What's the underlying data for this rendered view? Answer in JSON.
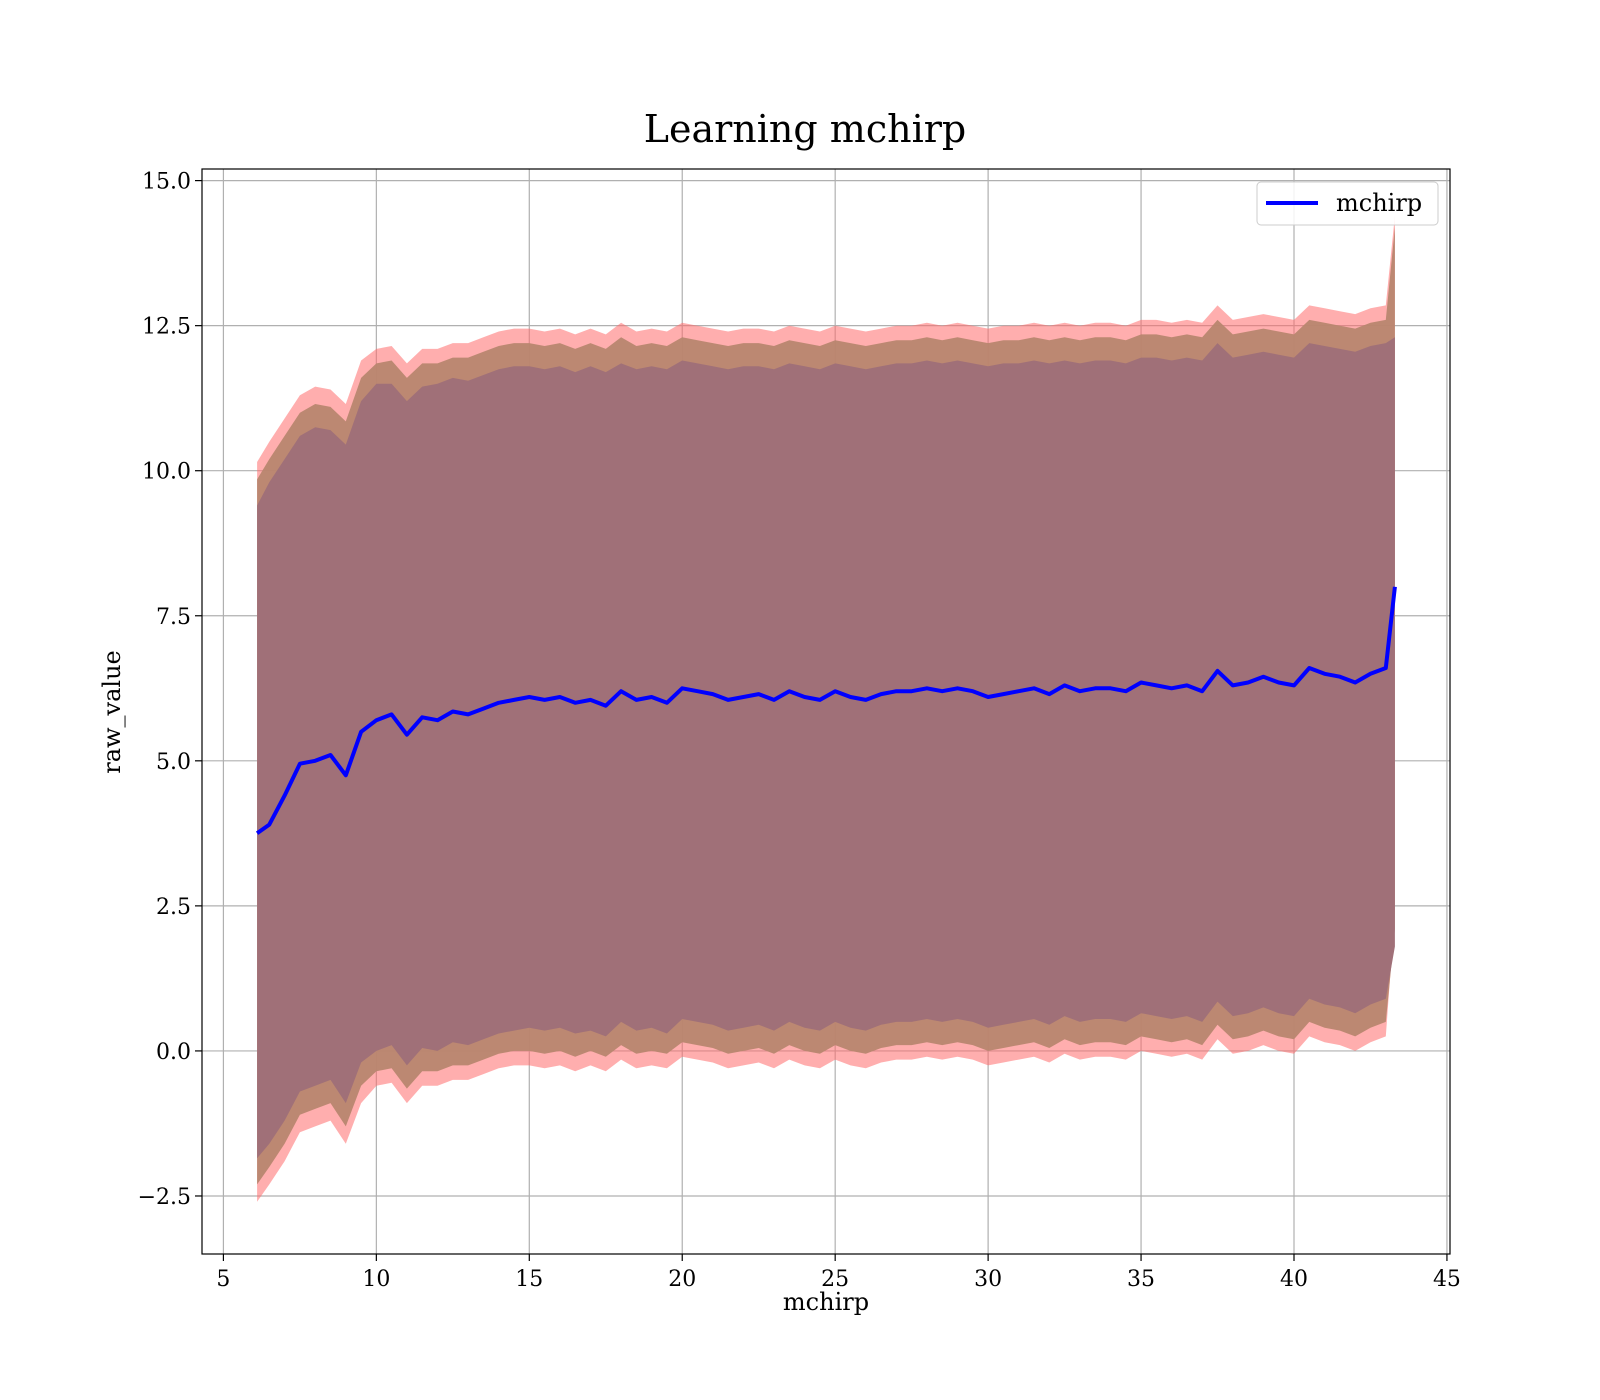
{
  "chart_data": {
    "type": "line",
    "title": "Learning mchirp",
    "xlabel": "mchirp",
    "ylabel": "raw_value",
    "xlim": [
      4.3,
      45.1
    ],
    "ylim": [
      -3.5,
      15.2
    ],
    "xticks": [
      5,
      10,
      15,
      20,
      25,
      30,
      35,
      40,
      45
    ],
    "xtick_labels": [
      "5",
      "10",
      "15",
      "20",
      "25",
      "30",
      "35",
      "40",
      "45"
    ],
    "yticks": [
      -2.5,
      0.0,
      2.5,
      5.0,
      7.5,
      10.0,
      12.5,
      15.0
    ],
    "ytick_labels": [
      "−2.5",
      "0.0",
      "2.5",
      "5.0",
      "7.5",
      "10.0",
      "12.5",
      "15.0"
    ],
    "grid": true,
    "legend": {
      "position": "top-right",
      "entries": [
        "mchirp"
      ]
    },
    "colors": {
      "line": "#0000ff",
      "band_outer": "#ff6b6b",
      "band_middle": "#b8866f",
      "band_inner": "#a07078",
      "grid": "#b0b0b0"
    },
    "x": [
      6.1,
      6.5,
      7.0,
      7.5,
      8.0,
      8.5,
      9.0,
      9.5,
      10.0,
      10.5,
      11.0,
      11.5,
      12.0,
      12.5,
      13.0,
      13.5,
      14.0,
      14.5,
      15.0,
      15.5,
      16.0,
      16.5,
      17.0,
      17.5,
      18.0,
      18.5,
      19.0,
      19.5,
      20.0,
      20.5,
      21.0,
      21.5,
      22.0,
      22.5,
      23.0,
      23.5,
      24.0,
      24.5,
      25.0,
      25.5,
      26.0,
      26.5,
      27.0,
      27.5,
      28.0,
      28.5,
      29.0,
      29.5,
      30.0,
      30.5,
      31.0,
      31.5,
      32.0,
      32.5,
      33.0,
      33.5,
      34.0,
      34.5,
      35.0,
      35.5,
      36.0,
      36.5,
      37.0,
      37.5,
      38.0,
      38.5,
      39.0,
      39.5,
      40.0,
      40.5,
      41.0,
      41.5,
      42.0,
      42.5,
      43.0,
      43.3
    ],
    "series": [
      {
        "name": "mchirp",
        "role": "mean",
        "values": [
          3.75,
          3.9,
          4.4,
          4.95,
          5.0,
          5.1,
          4.75,
          5.5,
          5.7,
          5.8,
          5.45,
          5.75,
          5.7,
          5.85,
          5.8,
          5.9,
          6.0,
          6.05,
          6.1,
          6.05,
          6.1,
          6.0,
          6.05,
          5.95,
          6.2,
          6.05,
          6.1,
          6.0,
          6.25,
          6.2,
          6.15,
          6.05,
          6.1,
          6.15,
          6.05,
          6.2,
          6.1,
          6.05,
          6.2,
          6.1,
          6.05,
          6.15,
          6.2,
          6.2,
          6.25,
          6.2,
          6.25,
          6.2,
          6.1,
          6.15,
          6.2,
          6.25,
          6.15,
          6.3,
          6.2,
          6.25,
          6.25,
          6.2,
          6.35,
          6.3,
          6.25,
          6.3,
          6.2,
          6.55,
          6.3,
          6.35,
          6.45,
          6.35,
          6.3,
          6.6,
          6.5,
          6.45,
          6.35,
          6.5,
          6.6,
          8.0
        ]
      },
      {
        "name": "",
        "role": "band_inner_upper",
        "values": [
          9.4,
          9.8,
          10.2,
          10.6,
          10.75,
          10.7,
          10.45,
          11.2,
          11.5,
          11.5,
          11.2,
          11.45,
          11.5,
          11.6,
          11.55,
          11.65,
          11.75,
          11.8,
          11.8,
          11.75,
          11.8,
          11.7,
          11.8,
          11.7,
          11.85,
          11.75,
          11.8,
          11.75,
          11.9,
          11.85,
          11.8,
          11.75,
          11.8,
          11.8,
          11.75,
          11.85,
          11.8,
          11.75,
          11.85,
          11.8,
          11.75,
          11.8,
          11.85,
          11.85,
          11.9,
          11.85,
          11.9,
          11.85,
          11.8,
          11.85,
          11.85,
          11.9,
          11.85,
          11.9,
          11.85,
          11.9,
          11.9,
          11.85,
          11.95,
          11.95,
          11.9,
          11.95,
          11.9,
          12.2,
          11.95,
          12.0,
          12.05,
          12.0,
          11.95,
          12.2,
          12.15,
          12.1,
          12.05,
          12.15,
          12.2,
          12.3
        ]
      },
      {
        "name": "",
        "role": "band_inner_lower",
        "values": [
          -1.85,
          -1.6,
          -1.2,
          -0.7,
          -0.6,
          -0.5,
          -0.9,
          -0.2,
          0.0,
          0.1,
          -0.25,
          0.05,
          0.0,
          0.15,
          0.1,
          0.2,
          0.3,
          0.35,
          0.4,
          0.35,
          0.4,
          0.3,
          0.35,
          0.25,
          0.5,
          0.35,
          0.4,
          0.3,
          0.55,
          0.5,
          0.45,
          0.35,
          0.4,
          0.45,
          0.35,
          0.5,
          0.4,
          0.35,
          0.5,
          0.4,
          0.35,
          0.45,
          0.5,
          0.5,
          0.55,
          0.5,
          0.55,
          0.5,
          0.4,
          0.45,
          0.5,
          0.55,
          0.45,
          0.6,
          0.5,
          0.55,
          0.55,
          0.5,
          0.65,
          0.6,
          0.55,
          0.6,
          0.5,
          0.85,
          0.6,
          0.65,
          0.75,
          0.65,
          0.6,
          0.9,
          0.8,
          0.75,
          0.65,
          0.8,
          0.9,
          1.8
        ]
      },
      {
        "name": "",
        "role": "band_middle_upper",
        "values": [
          9.85,
          10.2,
          10.6,
          11.0,
          11.15,
          11.1,
          10.85,
          11.6,
          11.85,
          11.9,
          11.6,
          11.85,
          11.85,
          11.95,
          11.95,
          12.05,
          12.15,
          12.2,
          12.2,
          12.15,
          12.2,
          12.1,
          12.2,
          12.1,
          12.3,
          12.15,
          12.2,
          12.15,
          12.3,
          12.25,
          12.2,
          12.15,
          12.2,
          12.2,
          12.15,
          12.25,
          12.2,
          12.15,
          12.25,
          12.2,
          12.15,
          12.2,
          12.25,
          12.25,
          12.3,
          12.25,
          12.3,
          12.25,
          12.2,
          12.25,
          12.25,
          12.3,
          12.25,
          12.3,
          12.25,
          12.3,
          12.3,
          12.25,
          12.35,
          12.35,
          12.3,
          12.35,
          12.3,
          12.6,
          12.35,
          12.4,
          12.45,
          12.4,
          12.35,
          12.6,
          12.55,
          12.5,
          12.45,
          12.55,
          12.6,
          14.2
        ]
      },
      {
        "name": "",
        "role": "band_middle_lower",
        "values": [
          -2.3,
          -2.0,
          -1.6,
          -1.1,
          -1.0,
          -0.9,
          -1.3,
          -0.6,
          -0.35,
          -0.3,
          -0.65,
          -0.35,
          -0.35,
          -0.25,
          -0.25,
          -0.15,
          -0.05,
          0.0,
          0.0,
          -0.05,
          0.0,
          -0.1,
          0.0,
          -0.1,
          0.1,
          -0.05,
          0.0,
          -0.05,
          0.15,
          0.1,
          0.05,
          -0.05,
          0.0,
          0.05,
          -0.05,
          0.1,
          0.0,
          -0.05,
          0.1,
          0.0,
          -0.05,
          0.05,
          0.1,
          0.1,
          0.15,
          0.1,
          0.15,
          0.1,
          0.0,
          0.05,
          0.1,
          0.15,
          0.05,
          0.2,
          0.1,
          0.15,
          0.15,
          0.1,
          0.25,
          0.2,
          0.15,
          0.2,
          0.1,
          0.45,
          0.2,
          0.25,
          0.35,
          0.25,
          0.2,
          0.5,
          0.4,
          0.35,
          0.25,
          0.4,
          0.5,
          2.1
        ]
      },
      {
        "name": "",
        "role": "band_outer_upper",
        "values": [
          10.15,
          10.5,
          10.9,
          11.3,
          11.45,
          11.4,
          11.15,
          11.9,
          12.1,
          12.15,
          11.85,
          12.1,
          12.1,
          12.2,
          12.2,
          12.3,
          12.4,
          12.45,
          12.45,
          12.4,
          12.45,
          12.35,
          12.45,
          12.35,
          12.55,
          12.4,
          12.45,
          12.4,
          12.55,
          12.5,
          12.45,
          12.4,
          12.45,
          12.45,
          12.4,
          12.5,
          12.45,
          12.4,
          12.5,
          12.45,
          12.4,
          12.45,
          12.5,
          12.5,
          12.55,
          12.5,
          12.55,
          12.5,
          12.45,
          12.5,
          12.5,
          12.55,
          12.5,
          12.55,
          12.5,
          12.55,
          12.55,
          12.5,
          12.6,
          12.6,
          12.55,
          12.6,
          12.55,
          12.85,
          12.6,
          12.65,
          12.7,
          12.65,
          12.6,
          12.85,
          12.8,
          12.75,
          12.7,
          12.8,
          12.85,
          14.4
        ]
      },
      {
        "name": "",
        "role": "band_outer_lower",
        "values": [
          -2.6,
          -2.3,
          -1.9,
          -1.4,
          -1.3,
          -1.2,
          -1.6,
          -0.9,
          -0.6,
          -0.55,
          -0.9,
          -0.6,
          -0.6,
          -0.5,
          -0.5,
          -0.4,
          -0.3,
          -0.25,
          -0.25,
          -0.3,
          -0.25,
          -0.35,
          -0.25,
          -0.35,
          -0.15,
          -0.3,
          -0.25,
          -0.3,
          -0.1,
          -0.15,
          -0.2,
          -0.3,
          -0.25,
          -0.2,
          -0.3,
          -0.15,
          -0.25,
          -0.3,
          -0.15,
          -0.25,
          -0.3,
          -0.2,
          -0.15,
          -0.15,
          -0.1,
          -0.15,
          -0.1,
          -0.15,
          -0.25,
          -0.2,
          -0.15,
          -0.1,
          -0.2,
          -0.05,
          -0.15,
          -0.1,
          -0.1,
          -0.15,
          0.0,
          -0.05,
          -0.1,
          -0.05,
          -0.15,
          0.2,
          -0.05,
          0.0,
          0.1,
          0.0,
          -0.05,
          0.25,
          0.15,
          0.1,
          0.0,
          0.15,
          0.25,
          2.4
        ]
      }
    ]
  }
}
